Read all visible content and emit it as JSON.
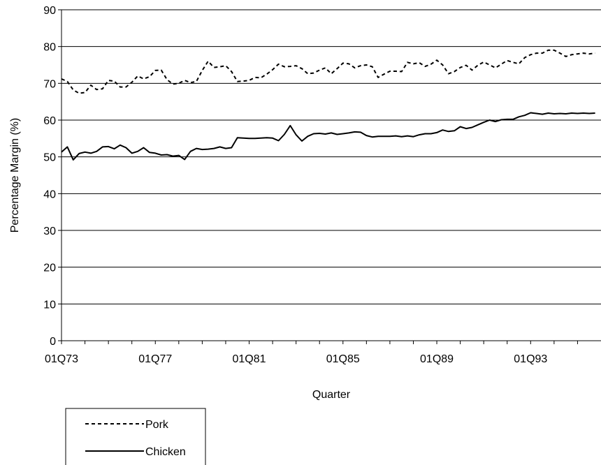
{
  "chart_data": {
    "type": "line",
    "xlabel": "Quarter",
    "ylabel": "Percentage Margin (%)",
    "ylim": [
      0,
      90
    ],
    "yticks": [
      0,
      10,
      20,
      30,
      40,
      50,
      60,
      70,
      80,
      90
    ],
    "xlim": [
      1973.0,
      1996.0
    ],
    "xtick_labels": [
      {
        "value": 1973,
        "label": "01Q73"
      },
      {
        "value": 1977,
        "label": "01Q77"
      },
      {
        "value": 1981,
        "label": "01Q81"
      },
      {
        "value": 1985,
        "label": "01Q85"
      },
      {
        "value": 1989,
        "label": "01Q89"
      },
      {
        "value": 1993,
        "label": "01Q93"
      }
    ],
    "grid": "horizontal",
    "legend_position": "bottom-left",
    "series": [
      {
        "name": "Pork",
        "style": "dashed",
        "color": "#000000",
        "x": [
          1973.0,
          1973.25,
          1973.5,
          1973.75,
          1974.0,
          1974.25,
          1974.5,
          1974.75,
          1975.0,
          1975.25,
          1975.5,
          1975.75,
          1976.0,
          1976.25,
          1976.5,
          1976.75,
          1977.0,
          1977.25,
          1977.5,
          1977.75,
          1978.0,
          1978.25,
          1978.5,
          1978.75,
          1979.0,
          1979.25,
          1979.5,
          1979.75,
          1980.0,
          1980.25,
          1980.5,
          1980.75,
          1981.0,
          1981.25,
          1981.5,
          1981.75,
          1982.0,
          1982.25,
          1982.5,
          1982.75,
          1983.0,
          1983.25,
          1983.5,
          1983.75,
          1984.0,
          1984.25,
          1984.5,
          1984.75,
          1985.0,
          1985.25,
          1985.5,
          1985.75,
          1986.0,
          1986.25,
          1986.5,
          1986.75,
          1987.0,
          1987.25,
          1987.5,
          1987.75,
          1988.0,
          1988.25,
          1988.5,
          1988.75,
          1989.0,
          1989.25,
          1989.5,
          1989.75,
          1990.0,
          1990.25,
          1990.5,
          1990.75,
          1991.0,
          1991.25,
          1991.5,
          1991.75,
          1992.0,
          1992.25,
          1992.5,
          1992.75,
          1993.0,
          1993.25,
          1993.5,
          1993.75,
          1994.0,
          1994.25,
          1994.5,
          1994.75,
          1995.0,
          1995.25,
          1995.5,
          1995.75
        ],
        "y": [
          71.2,
          70.5,
          68.2,
          67.3,
          67.5,
          69.5,
          68.3,
          68.5,
          70.8,
          70.6,
          69.0,
          69.0,
          70.3,
          72.0,
          71.2,
          71.8,
          73.5,
          73.6,
          71.0,
          69.8,
          70.0,
          70.8,
          70.2,
          70.5,
          73.5,
          76.0,
          74.3,
          74.5,
          74.8,
          73.2,
          70.5,
          70.6,
          70.8,
          71.6,
          71.5,
          72.5,
          73.7,
          75.2,
          74.5,
          74.6,
          74.8,
          74.0,
          72.6,
          72.8,
          73.6,
          74.2,
          72.6,
          74.0,
          75.5,
          75.3,
          74.2,
          74.8,
          75.0,
          74.5,
          71.6,
          72.5,
          73.3,
          73.3,
          73.2,
          75.7,
          75.3,
          75.6,
          74.6,
          75.2,
          76.3,
          75.0,
          72.6,
          73.2,
          74.3,
          74.9,
          73.6,
          74.9,
          75.8,
          75.0,
          74.2,
          75.2,
          76.2,
          75.7,
          75.3,
          77.0,
          77.8,
          78.2,
          78.2,
          79.0,
          79.0,
          78.2,
          77.3,
          77.8,
          78.0,
          78.2,
          78.0,
          78.2
        ]
      },
      {
        "name": "Chicken",
        "style": "solid",
        "color": "#000000",
        "x": [
          1973.0,
          1973.25,
          1973.5,
          1973.75,
          1974.0,
          1974.25,
          1974.5,
          1974.75,
          1975.0,
          1975.25,
          1975.5,
          1975.75,
          1976.0,
          1976.25,
          1976.5,
          1976.75,
          1977.0,
          1977.25,
          1977.5,
          1977.75,
          1978.0,
          1978.25,
          1978.5,
          1978.75,
          1979.0,
          1979.25,
          1979.5,
          1979.75,
          1980.0,
          1980.25,
          1980.5,
          1980.75,
          1981.0,
          1981.25,
          1981.5,
          1981.75,
          1982.0,
          1982.25,
          1982.5,
          1982.75,
          1983.0,
          1983.25,
          1983.5,
          1983.75,
          1984.0,
          1984.25,
          1984.5,
          1984.75,
          1985.0,
          1985.25,
          1985.5,
          1985.75,
          1986.0,
          1986.25,
          1986.5,
          1986.75,
          1987.0,
          1987.25,
          1987.5,
          1987.75,
          1988.0,
          1988.25,
          1988.5,
          1988.75,
          1989.0,
          1989.25,
          1989.5,
          1989.75,
          1990.0,
          1990.25,
          1990.5,
          1990.75,
          1991.0,
          1991.25,
          1991.5,
          1991.75,
          1992.0,
          1992.25,
          1992.5,
          1992.75,
          1993.0,
          1993.25,
          1993.5,
          1993.75,
          1994.0,
          1994.25,
          1994.5,
          1994.75,
          1995.0,
          1995.25,
          1995.5,
          1995.75
        ],
        "y": [
          51.3,
          52.7,
          49.2,
          50.9,
          51.3,
          51.0,
          51.5,
          52.7,
          52.8,
          52.2,
          53.2,
          52.5,
          51.0,
          51.5,
          52.5,
          51.2,
          51.0,
          50.5,
          50.6,
          50.2,
          50.4,
          49.3,
          51.5,
          52.3,
          52.0,
          52.1,
          52.3,
          52.7,
          52.3,
          52.5,
          55.2,
          55.1,
          55.0,
          55.0,
          55.1,
          55.2,
          55.1,
          54.4,
          56.1,
          58.5,
          56.0,
          54.3,
          55.6,
          56.3,
          56.4,
          56.2,
          56.5,
          56.1,
          56.3,
          56.5,
          56.8,
          56.7,
          55.8,
          55.4,
          55.6,
          55.6,
          55.6,
          55.7,
          55.5,
          55.7,
          55.5,
          56.0,
          56.3,
          56.3,
          56.6,
          57.3,
          56.9,
          57.1,
          58.2,
          57.7,
          58.0,
          58.7,
          59.4,
          60.0,
          59.6,
          60.1,
          60.2,
          60.2,
          60.9,
          61.3,
          62.0,
          61.8,
          61.6,
          61.9,
          61.7,
          61.8,
          61.7,
          61.9,
          61.8,
          61.9,
          61.8,
          61.9
        ]
      }
    ]
  }
}
